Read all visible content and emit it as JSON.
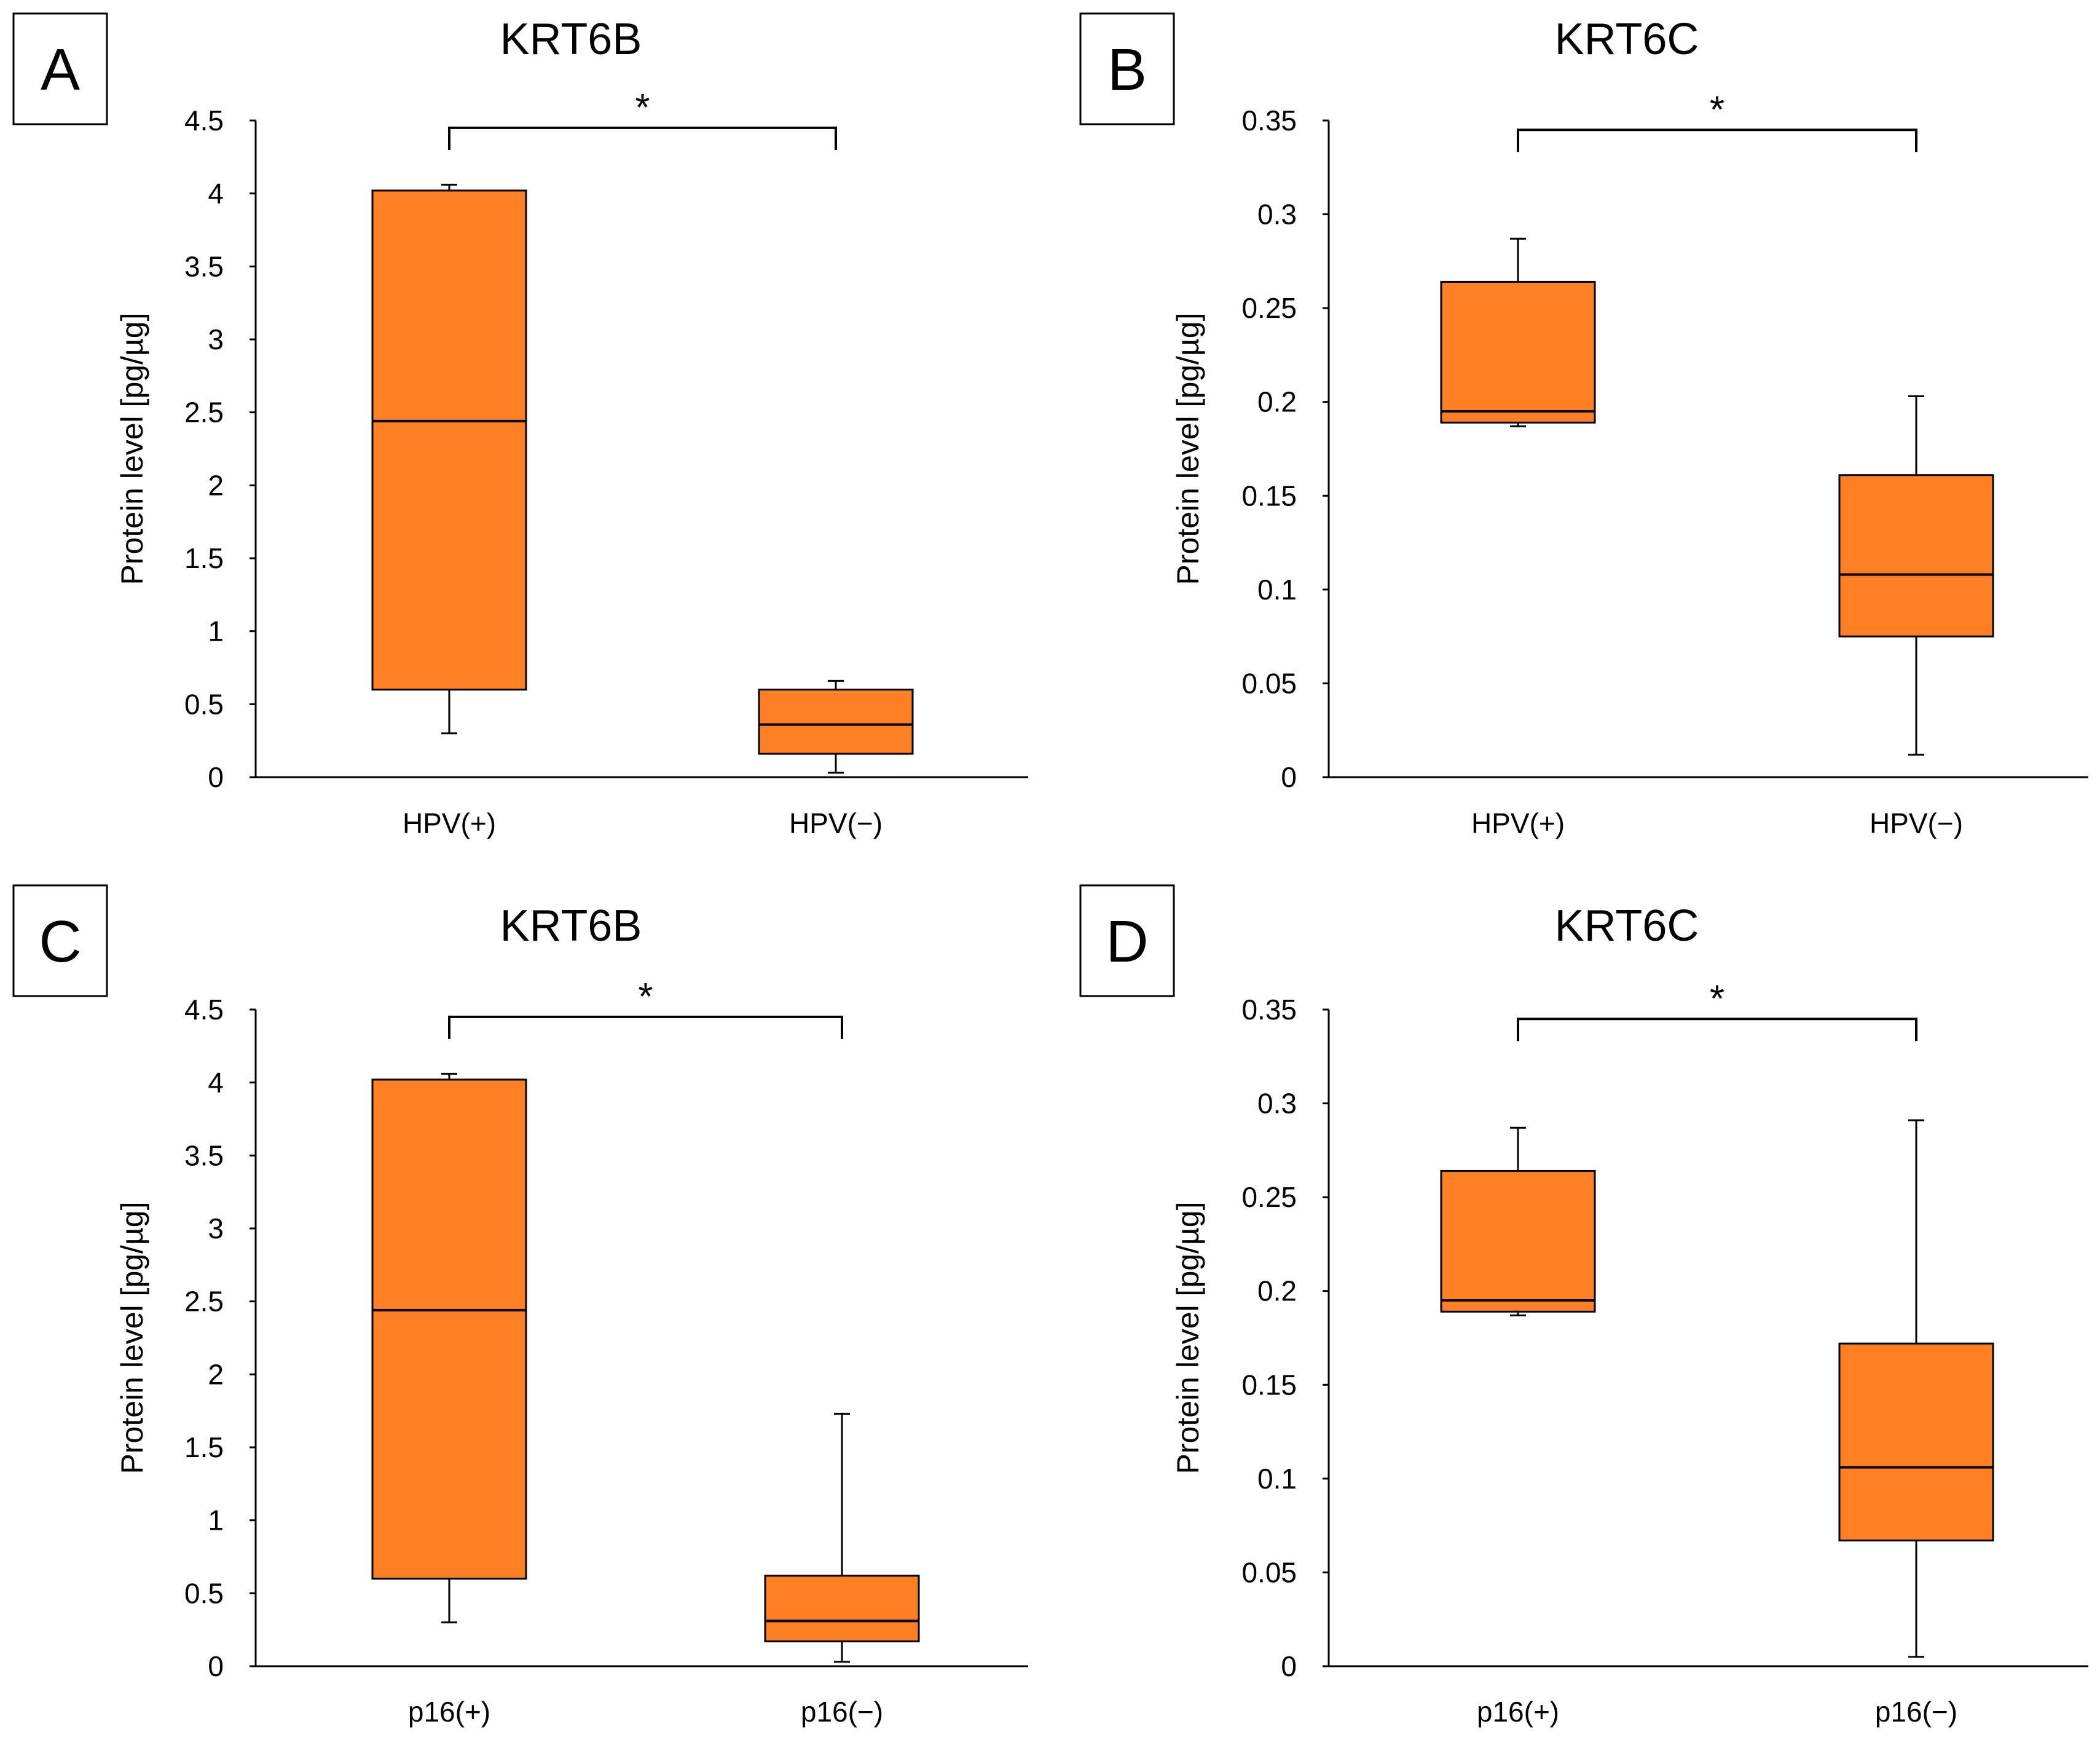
{
  "colors": {
    "box_fill": "#FF7F27",
    "line": "#000000",
    "background": "#ffffff"
  },
  "chart_data": [
    {
      "panel": "A",
      "type": "box",
      "title": "KRT6B",
      "ylabel": "Protein level [pg/µg]",
      "xlabel": "",
      "ylim": [
        0,
        4.5
      ],
      "yticks": [
        "0",
        "0.5",
        "1",
        "1.5",
        "2",
        "2.5",
        "3",
        "3.5",
        "4",
        "4.5"
      ],
      "categories": [
        "HPV(+)",
        "HPV(−)"
      ],
      "boxes": [
        {
          "min": 0.3,
          "q1": 0.6,
          "median": 2.44,
          "q3": 4.02,
          "max": 4.06
        },
        {
          "min": 0.03,
          "q1": 0.16,
          "median": 0.36,
          "q3": 0.6,
          "max": 0.66
        }
      ],
      "significance": {
        "from": 0,
        "to": 1,
        "label": "*",
        "y": 4.45
      }
    },
    {
      "panel": "B",
      "type": "box",
      "title": "KRT6C",
      "ylabel": "Protein level [pg/µg]",
      "xlabel": "",
      "ylim": [
        0,
        0.35
      ],
      "yticks": [
        "0",
        "0.05",
        "0.1",
        "0.15",
        "0.2",
        "0.25",
        "0.3",
        "0.35"
      ],
      "categories": [
        "HPV(+)",
        "HPV(−)"
      ],
      "boxes": [
        {
          "min": 0.187,
          "q1": 0.189,
          "median": 0.195,
          "q3": 0.264,
          "max": 0.287
        },
        {
          "min": 0.012,
          "q1": 0.075,
          "median": 0.108,
          "q3": 0.161,
          "max": 0.203
        }
      ],
      "significance": {
        "from": 0,
        "to": 1,
        "label": "*",
        "y": 0.345
      }
    },
    {
      "panel": "C",
      "type": "box",
      "title": "KRT6B",
      "ylabel": "Protein level [pg/µg]",
      "xlabel": "",
      "ylim": [
        0,
        4.5
      ],
      "yticks": [
        "0",
        "0.5",
        "1",
        "1.5",
        "2",
        "2.5",
        "3",
        "3.5",
        "4",
        "4.5"
      ],
      "categories": [
        "p16(+)",
        "p16(−)"
      ],
      "boxes": [
        {
          "min": 0.3,
          "q1": 0.6,
          "median": 2.44,
          "q3": 4.02,
          "max": 4.06
        },
        {
          "min": 0.03,
          "q1": 0.17,
          "median": 0.31,
          "q3": 0.62,
          "max": 1.73
        }
      ],
      "significance": {
        "from": 0,
        "to": 1,
        "label": "*",
        "y": 4.45
      }
    },
    {
      "panel": "D",
      "type": "box",
      "title": "KRT6C",
      "ylabel": "Protein level [pg/µg]",
      "xlabel": "",
      "ylim": [
        0,
        0.35
      ],
      "yticks": [
        "0",
        "0.05",
        "0.1",
        "0.15",
        "0.2",
        "0.25",
        "0.3",
        "0.35"
      ],
      "categories": [
        "p16(+)",
        "p16(−)"
      ],
      "boxes": [
        {
          "min": 0.187,
          "q1": 0.189,
          "median": 0.195,
          "q3": 0.264,
          "max": 0.287
        },
        {
          "min": 0.005,
          "q1": 0.067,
          "median": 0.106,
          "q3": 0.172,
          "max": 0.291
        }
      ],
      "significance": {
        "from": 0,
        "to": 1,
        "label": "*",
        "y": 0.345
      }
    }
  ]
}
